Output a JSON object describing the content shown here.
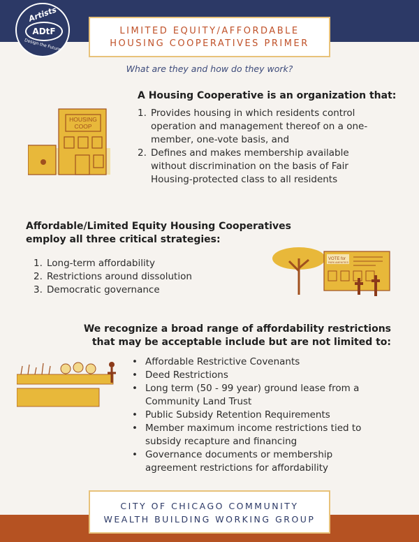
{
  "logo": {
    "line1": "Artists",
    "line2": "ADtF",
    "line3": "Design the Future"
  },
  "title": {
    "line1": "LIMITED EQUITY/AFFORDABLE",
    "line2": "HOUSING COOPERATIVES PRIMER"
  },
  "subtitle": "What are they and how do they work?",
  "section1": {
    "heading": "A Housing Cooperative is an organization that:",
    "items": [
      {
        "num": "1.",
        "lines": [
          "Provides housing in which residents control",
          "operation and management thereof on a one-",
          "member, one-vote basis, and"
        ]
      },
      {
        "num": "2.",
        "lines": [
          "Defines and makes membership available",
          "without discrimination on the basis of Fair",
          "Housing-protected class to all residents"
        ]
      }
    ]
  },
  "illustration1": {
    "sign_line1": "HOUSING",
    "sign_line2": "COOP"
  },
  "section2": {
    "heading_line1": "Affordable/Limited Equity Housing Cooperatives",
    "heading_line2": "employ all three critical strategies:",
    "items": [
      {
        "num": "1.",
        "text": "Long-term affordability"
      },
      {
        "num": "2.",
        "text": "Restrictions around dissolution"
      },
      {
        "num": "3.",
        "text": "Democratic governance"
      }
    ]
  },
  "illustration2": {
    "board_title": "VOTE for",
    "board_sub": "PARK AMENITIES"
  },
  "section3": {
    "heading_line1": "We recognize a broad range of affordability restrictions",
    "heading_line2": "that may be acceptable include but are not limited to:",
    "items": [
      {
        "lines": [
          "Affordable Restrictive Covenants"
        ]
      },
      {
        "lines": [
          "Deed Restrictions"
        ]
      },
      {
        "lines": [
          "Long term (50 - 99 year) ground lease from a",
          "Community Land Trust"
        ]
      },
      {
        "lines": [
          "Public Subsidy Retention Requirements"
        ]
      },
      {
        "lines": [
          "Member maximum income restrictions tied to",
          "subsidy recapture and financing"
        ]
      },
      {
        "lines": [
          "Governance documents or membership",
          "agreement restrictions for affordability"
        ]
      }
    ]
  },
  "footer": {
    "line1": "CITY OF CHICAGO COMMUNITY",
    "line2": "WEALTH BUILDING WORKING GROUP"
  },
  "colors": {
    "navy": "#2c3966",
    "rust": "#b55222",
    "gold": "#e8b83a",
    "cream": "#f6f3ef"
  }
}
